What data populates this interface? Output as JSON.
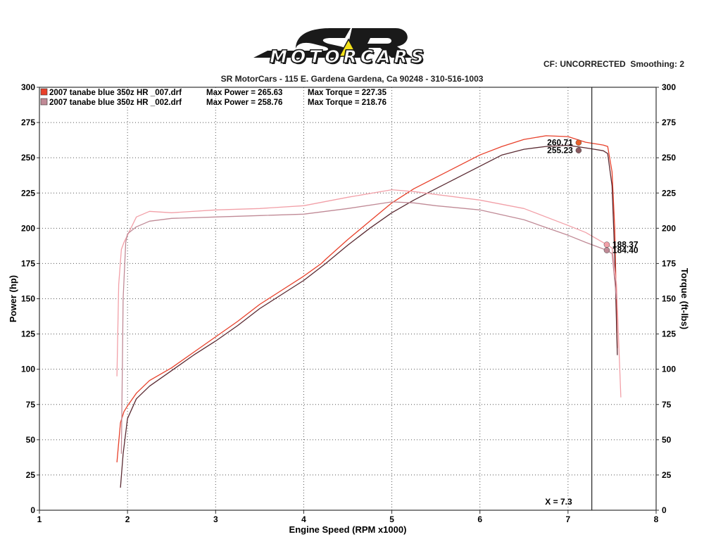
{
  "header": {
    "logo_text": "MOTORCARS",
    "correction": "CF: UNCORRECTED  Smoothing: 2",
    "shop_line": "SR MotorCars - 115 E. Gardena  Gardena, Ca 90248 - 310-516-1003"
  },
  "colors": {
    "run_007_power": "#e8402a",
    "run_002_power": "#5a2a32",
    "run_007_torque": "#f2a0a8",
    "run_002_torque": "#c08a96",
    "grid": "#555555",
    "cursor": "#222222"
  },
  "chart_data": {
    "type": "line",
    "title": "",
    "xlabel": "Engine Speed (RPM x1000)",
    "ylabel_left": "Power (hp)",
    "ylabel_right": "Torque (ft-lbs)",
    "xlim": [
      1,
      8
    ],
    "ylim": [
      0,
      300
    ],
    "x_ticks": [
      1,
      2,
      3,
      4,
      5,
      6,
      7,
      8
    ],
    "y_ticks": [
      0,
      25,
      50,
      75,
      100,
      125,
      150,
      175,
      200,
      225,
      250,
      275,
      300
    ],
    "grid": true,
    "legend_position": "top-left",
    "legend": [
      {
        "run": "2007 tanabe blue 350z HR _007.drf",
        "max_power": "Max Power = 265.63",
        "max_torque": "Max Torque = 227.35"
      },
      {
        "run": "2007 tanabe blue 350z HR _002.drf",
        "max_power": "Max Power = 258.76",
        "max_torque": "Max Torque = 218.76"
      }
    ],
    "series": [
      {
        "run": "_007",
        "measure": "power",
        "color": "#e8402a",
        "x": [
          1.88,
          1.92,
          1.96,
          2.0,
          2.1,
          2.25,
          2.5,
          2.75,
          3.0,
          3.25,
          3.5,
          3.75,
          4.0,
          4.2,
          4.25,
          4.5,
          4.75,
          5.0,
          5.25,
          5.5,
          5.75,
          6.0,
          6.25,
          6.5,
          6.75,
          7.0,
          7.2,
          7.3,
          7.4,
          7.45,
          7.5,
          7.53,
          7.56
        ],
        "y": [
          34,
          62,
          70,
          74,
          83,
          92,
          101,
          112,
          123,
          134,
          146,
          156,
          166,
          175,
          178,
          192,
          205,
          218,
          228,
          236,
          244,
          252,
          258,
          263,
          265.6,
          265,
          261,
          260,
          259,
          258,
          240,
          200,
          115
        ]
      },
      {
        "run": "_002",
        "measure": "power",
        "color": "#5a2a32",
        "x": [
          1.92,
          1.95,
          2.0,
          2.1,
          2.25,
          2.5,
          2.75,
          3.0,
          3.25,
          3.5,
          3.75,
          4.0,
          4.25,
          4.5,
          4.75,
          5.0,
          5.25,
          5.5,
          5.75,
          6.0,
          6.25,
          6.5,
          6.75,
          7.0,
          7.2,
          7.3,
          7.4,
          7.45,
          7.5,
          7.53,
          7.56
        ],
        "y": [
          16,
          40,
          65,
          79,
          88,
          99,
          110,
          120,
          131,
          143,
          153,
          163,
          175,
          188,
          200,
          211,
          220,
          228,
          236,
          244,
          252,
          256,
          258,
          258.8,
          257,
          256,
          255,
          253,
          230,
          180,
          110
        ]
      },
      {
        "run": "_007",
        "measure": "torque",
        "color": "#f2a0a8",
        "x": [
          1.88,
          1.9,
          1.93,
          1.96,
          2.0,
          2.1,
          2.25,
          2.5,
          3.0,
          3.5,
          4.0,
          4.5,
          5.0,
          5.25,
          5.5,
          6.0,
          6.5,
          7.0,
          7.2,
          7.44,
          7.5,
          7.55,
          7.6
        ],
        "y": [
          95,
          160,
          185,
          190,
          195,
          208,
          212,
          211,
          213,
          214,
          216,
          222,
          227.3,
          226,
          224,
          220,
          214,
          202,
          197,
          188.4,
          186,
          160,
          80
        ]
      },
      {
        "run": "_002",
        "measure": "torque",
        "color": "#c08a96",
        "x": [
          1.93,
          1.95,
          1.98,
          2.0,
          2.1,
          2.25,
          2.5,
          3.0,
          3.5,
          4.0,
          4.5,
          5.0,
          5.25,
          5.5,
          6.0,
          6.5,
          7.0,
          7.2,
          7.44,
          7.5,
          7.55
        ],
        "y": [
          40,
          150,
          190,
          196,
          201,
          205,
          207,
          208,
          209,
          210,
          214,
          218.7,
          218,
          216,
          213,
          206,
          195,
          190,
          184.4,
          182,
          150
        ]
      }
    ],
    "data_labels": [
      {
        "text": "260.71",
        "x": 7.12,
        "y": 260.71,
        "color": "#e8602a",
        "side": "left"
      },
      {
        "text": "255.23",
        "x": 7.12,
        "y": 255.23,
        "color": "#8a5a60",
        "side": "left"
      },
      {
        "text": "188.37",
        "x": 7.44,
        "y": 188.37,
        "color": "#f2a0a8",
        "side": "right"
      },
      {
        "text": "184.40",
        "x": 7.44,
        "y": 184.4,
        "color": "#c08a96",
        "side": "right"
      }
    ],
    "cursor": {
      "x": 7.27,
      "label": "X = 7.3"
    }
  }
}
